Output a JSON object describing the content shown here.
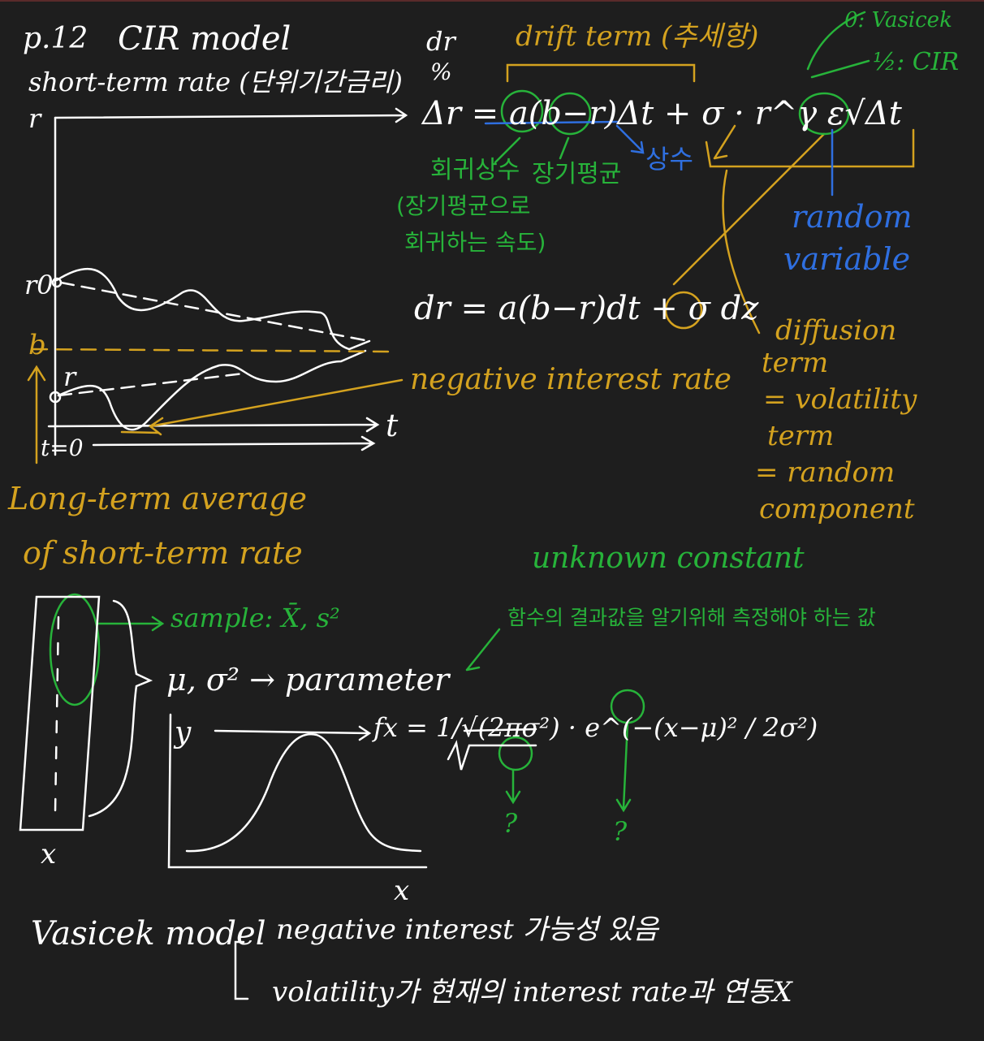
{
  "header": {
    "page_ref": "p.12",
    "title": "CIR model",
    "subtitle": "short-term rate (단위기간금리)",
    "dr": "dr",
    "percent": "%"
  },
  "equation": {
    "discrete": "Δr = a(b−r)Δt + σ · r^γ ε√Δt",
    "continuous": "dr = a(b−r)dt + σ dz",
    "gamma_vasicek": "0: Vasicek",
    "gamma_cir": "½: CIR"
  },
  "labels": {
    "drift_term": "drift term (추세항)",
    "reversion": "회귀상수",
    "reversion_note_1": "(장기평균으로",
    "reversion_note_2": "회귀하는 속도)",
    "long_term_mean": "장기평균",
    "constant": "상수",
    "random_variable_1": "random",
    "random_variable_2": "variable",
    "diffusion_1": "diffusion",
    "diffusion_2": "term",
    "diffusion_3": "= volatility",
    "diffusion_4": "term",
    "diffusion_5": "= random",
    "diffusion_6": "component",
    "negative_rate": "negative interest rate",
    "long_term_avg_1": "Long-term average",
    "long_term_avg_2": "of short-term rate"
  },
  "graph1": {
    "y_axis": "r",
    "x_axis": "t",
    "r0": "r0",
    "b": "b",
    "r": "r",
    "t0": "t=0"
  },
  "statistics": {
    "sample": "sample: X̄, s²",
    "parameter": "μ, σ² → parameter",
    "unknown_constant": "unknown constant",
    "unknown_note": "함수의 결과값을 알기위해 측정해야 하는 값",
    "density": "fx = 1/√(2πσ²) · e^(−(x−μ)² / 2σ²)",
    "question": "?",
    "x_label": "x",
    "y_label": "y"
  },
  "summary": {
    "model": "Vasicek model",
    "point_1": "negative interest 가능성 있음",
    "point_2": "volatility가 현재의 interest rate과 연동X"
  },
  "colors": {
    "background": "#1e1e1e",
    "white": "#ffffff",
    "orange": "#d4a21f",
    "green": "#27b33a",
    "blue": "#2f6fe0"
  }
}
